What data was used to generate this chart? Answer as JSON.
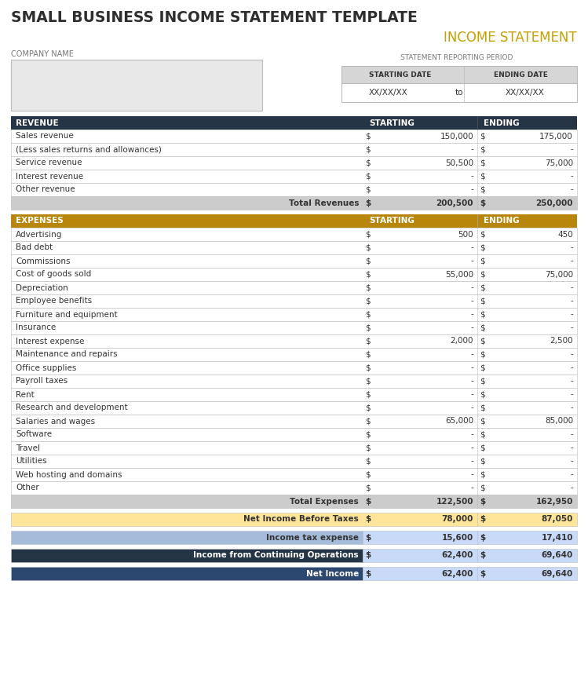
{
  "title": "SMALL BUSINESS INCOME STATEMENT TEMPLATE",
  "subtitle": "INCOME STATEMENT",
  "company_label": "COMPANY NAME",
  "period_label": "STATEMENT REPORTING PERIOD",
  "starting_date_label": "STARTING DATE",
  "ending_date_label": "ENDING DATE",
  "starting_date": "XX/XX/XX",
  "ending_date": "XX/XX/XX",
  "to_label": "to",
  "revenue_header": [
    "REVENUE",
    "STARTING",
    "ENDING"
  ],
  "revenue_rows": [
    [
      "Sales revenue",
      "$",
      "150,000",
      "$",
      "175,000"
    ],
    [
      "(Less sales returns and allowances)",
      "$",
      "-",
      "$",
      "-"
    ],
    [
      "Service revenue",
      "$",
      "50,500",
      "$",
      "75,000"
    ],
    [
      "Interest revenue",
      "$",
      "-",
      "$",
      "-"
    ],
    [
      "Other revenue",
      "$",
      "-",
      "$",
      "-"
    ]
  ],
  "revenue_total": [
    "Total Revenues",
    "$",
    "200,500",
    "$",
    "250,000"
  ],
  "expenses_header": [
    "EXPENSES",
    "STARTING",
    "ENDING"
  ],
  "expenses_rows": [
    [
      "Advertising",
      "$",
      "500",
      "$",
      "450"
    ],
    [
      "Bad debt",
      "$",
      "-",
      "$",
      "-"
    ],
    [
      "Commissions",
      "$",
      "-",
      "$",
      "-"
    ],
    [
      "Cost of goods sold",
      "$",
      "55,000",
      "$",
      "75,000"
    ],
    [
      "Depreciation",
      "$",
      "-",
      "$",
      "-"
    ],
    [
      "Employee benefits",
      "$",
      "-",
      "$",
      "-"
    ],
    [
      "Furniture and equipment",
      "$",
      "-",
      "$",
      "-"
    ],
    [
      "Insurance",
      "$",
      "-",
      "$",
      "-"
    ],
    [
      "Interest expense",
      "$",
      "2,000",
      "$",
      "2,500"
    ],
    [
      "Maintenance and repairs",
      "$",
      "-",
      "$",
      "-"
    ],
    [
      "Office supplies",
      "$",
      "-",
      "$",
      "-"
    ],
    [
      "Payroll taxes",
      "$",
      "-",
      "$",
      "-"
    ],
    [
      "Rent",
      "$",
      "-",
      "$",
      "-"
    ],
    [
      "Research and development",
      "$",
      "-",
      "$",
      "-"
    ],
    [
      "Salaries and wages",
      "$",
      "65,000",
      "$",
      "85,000"
    ],
    [
      "Software",
      "$",
      "-",
      "$",
      "-"
    ],
    [
      "Travel",
      "$",
      "-",
      "$",
      "-"
    ],
    [
      "Utilities",
      "$",
      "-",
      "$",
      "-"
    ],
    [
      "Web hosting and domains",
      "$",
      "-",
      "$",
      "-"
    ],
    [
      "Other",
      "$",
      "-",
      "$",
      "-"
    ]
  ],
  "expenses_total": [
    "Total Expenses",
    "$",
    "122,500",
    "$",
    "162,950"
  ],
  "net_income_before_taxes": [
    "Net Income Before Taxes",
    "$",
    "78,000",
    "$",
    "87,050"
  ],
  "income_tax": [
    "Income tax expense",
    "$",
    "15,600",
    "$",
    "17,410"
  ],
  "income_continuing": [
    "Income from Continuing Operations",
    "$",
    "62,400",
    "$",
    "69,640"
  ],
  "net_income": [
    "Net Income",
    "$",
    "62,400",
    "$",
    "69,640"
  ],
  "colors": {
    "title_text": "#2E2E2E",
    "subtitle_text": "#C4A000",
    "label_text": "#777777",
    "revenue_header_bg": "#263545",
    "revenue_header_text": "#FFFFFF",
    "expenses_header_bg": "#B8860B",
    "expenses_header_text": "#FFFFFF",
    "total_row_bg": "#CCCCCC",
    "net_income_bg": "#FFE599",
    "net_income_text": "#333333",
    "tax_row_bg_left": "#A4BCDA",
    "tax_row_bg_right": "#C9DAF8",
    "continuing_bg_left": "#263545",
    "continuing_bg_right": "#C9DAF8",
    "net_income_final_bg_left": "#2C4770",
    "net_income_final_bg_right": "#C9DAF8",
    "row_bg": "#FFFFFF",
    "border": "#BBBBBB",
    "company_box_bg": "#E8E8E8",
    "period_header_bg": "#D6D6D6",
    "period_data_bg": "#FFFFFF"
  }
}
